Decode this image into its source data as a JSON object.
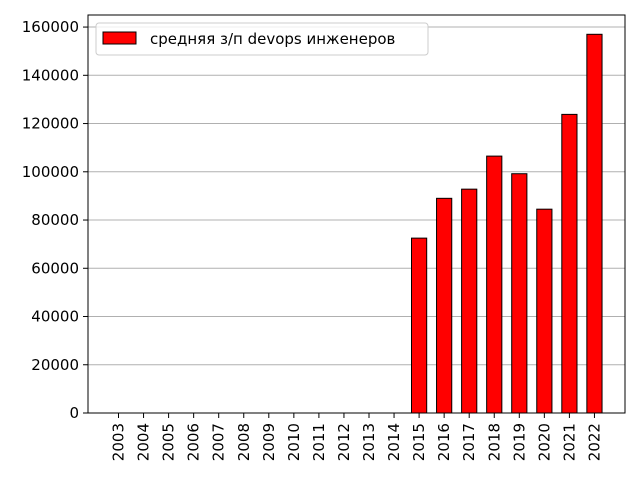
{
  "chart_data": {
    "type": "bar",
    "categories": [
      "2003",
      "2004",
      "2005",
      "2006",
      "2007",
      "2008",
      "2009",
      "2010",
      "2011",
      "2012",
      "2013",
      "2014",
      "2015",
      "2016",
      "2017",
      "2018",
      "2019",
      "2020",
      "2021",
      "2022"
    ],
    "series": [
      {
        "name": "средняя з/п devops инженеров",
        "values": [
          0,
          0,
          0,
          0,
          0,
          0,
          0,
          0,
          0,
          0,
          0,
          0,
          72500,
          89000,
          92800,
          106500,
          99200,
          84500,
          123800,
          157000
        ]
      }
    ],
    "ylim": [
      0,
      165000
    ],
    "yticks": [
      0,
      20000,
      40000,
      60000,
      80000,
      100000,
      120000,
      140000,
      160000
    ],
    "grid": "y",
    "legend_position": "top-left",
    "bar_color": "#ff0000",
    "bar_edge_color": "#000000",
    "grid_color": "#b0b0b0"
  }
}
